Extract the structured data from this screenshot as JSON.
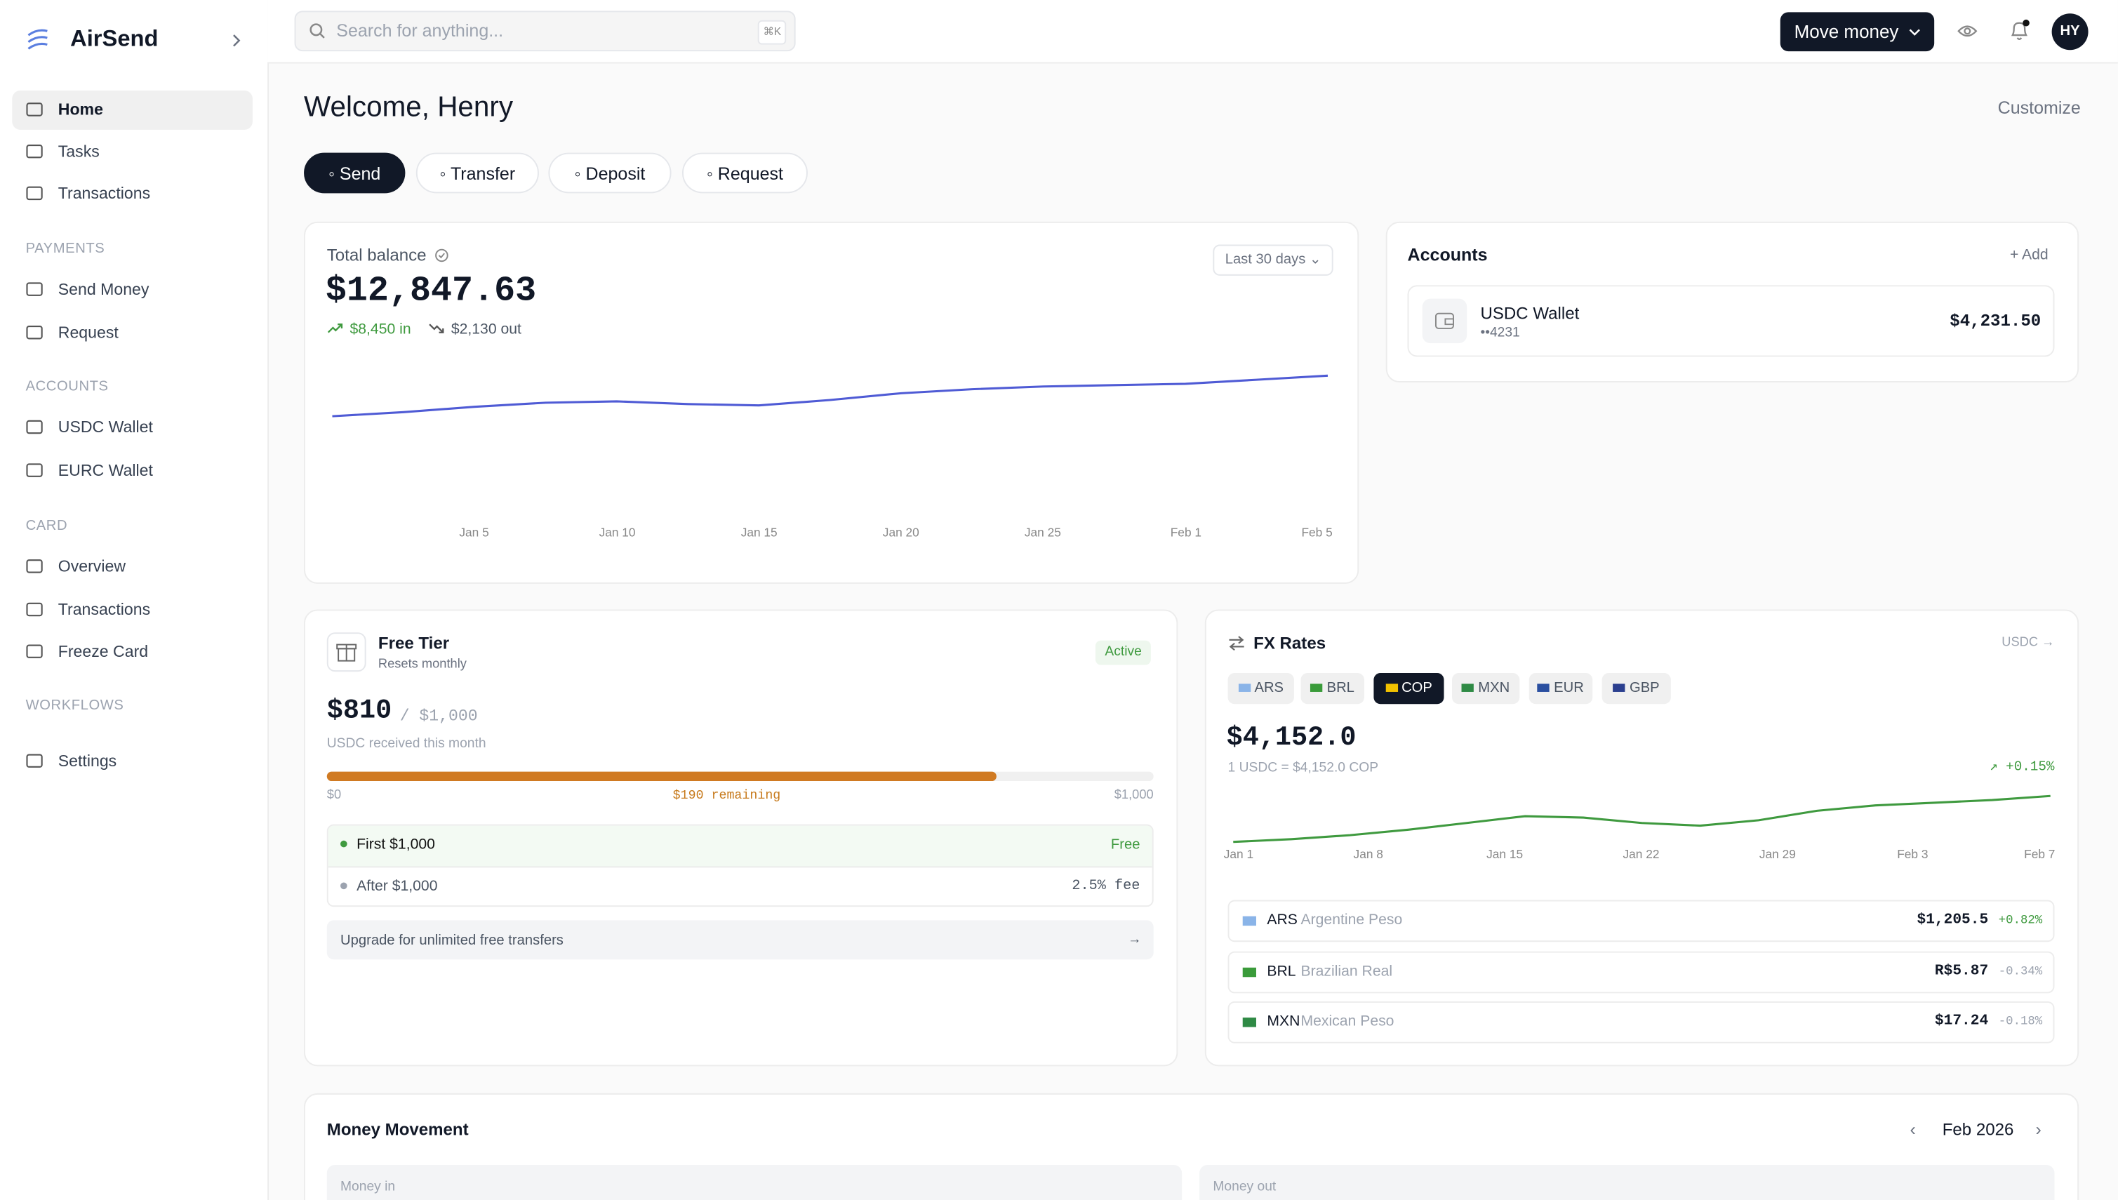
{
  "sidebar": {
    "brand": "AirSend",
    "main": [
      "Home",
      "Tasks",
      "Transactions"
    ],
    "sections": [
      {
        "title": "PAYMENTS",
        "items": [
          "Send Money",
          "Request"
        ]
      },
      {
        "title": "ACCOUNTS",
        "items": [
          "USDC Wallet",
          "EURC Wallet"
        ]
      },
      {
        "title": "CARD",
        "items": [
          "Overview",
          "Transactions",
          "Freeze Card"
        ]
      },
      {
        "title": "WORKFLOWS",
        "items": []
      }
    ],
    "settings": "Settings"
  },
  "topbar": {
    "search_placeholder": "Search for anything...",
    "shortcut": "⌘K",
    "move_money": "Move money",
    "avatar": "HY"
  },
  "header": {
    "title": "Welcome, Henry",
    "customize": "Customize",
    "actions": [
      "Send",
      "Transfer",
      "Deposit",
      "Request"
    ]
  },
  "balance": {
    "label": "Total balance",
    "amount": "$12,847.63",
    "money_in": "$8,450 in",
    "money_out": "$2,130 out",
    "range": "Last 30 days",
    "chart_data": {
      "type": "line",
      "color": "#4f5bd5",
      "values": [
        11200,
        11365,
        11584,
        11749,
        11804,
        11694,
        11639,
        11859,
        12134,
        12298,
        12408,
        12463,
        12518,
        12683,
        12847.63
      ],
      "xtick_labels": [
        "Jan 5",
        "Jan 10",
        "Jan 15",
        "Jan 20",
        "Jan 25",
        "Feb 1",
        "Feb 5"
      ]
    }
  },
  "accounts": {
    "title": "Accounts",
    "add": "Add",
    "items": [
      {
        "name": "USDC Wallet",
        "mask": "••4231",
        "balance": "$4,231.50"
      }
    ]
  },
  "free_tier": {
    "title": "Free Tier",
    "subtitle": "Resets monthly",
    "status": "Active",
    "amount": "$810",
    "limit": "/ $1,000",
    "note": "USDC received this month",
    "progress": {
      "value": 810,
      "max": 1000
    },
    "scale_start": "$0",
    "remaining": "$190 remaining",
    "scale_end": "$1,000",
    "tiers": [
      {
        "label": "First $1,000",
        "fee": "Free"
      },
      {
        "label": "After $1,000",
        "fee": "2.5% fee"
      }
    ],
    "upgrade": "Upgrade for unlimited free transfers"
  },
  "fx": {
    "title": "FX Rates",
    "base": "USDC →",
    "tabs": [
      "ARS",
      "BRL",
      "COP",
      "MXN",
      "EUR",
      "GBP"
    ],
    "active_tab": 2,
    "rate": "$4,152.0",
    "rate_note": "1 USDC = $4,152.0 COP",
    "change": "+0.15%",
    "chart_data": {
      "type": "line",
      "color": "#3f9a3f",
      "values": [
        4100,
        4103.1,
        4107.6,
        4113.8,
        4121.4,
        4129.1,
        4127.5,
        4121.4,
        4118.4,
        4124.5,
        4135.2,
        4141.3,
        4144.3,
        4147.4,
        4152.0
      ],
      "xtick_labels": [
        "Jan 1",
        "Jan 8",
        "Jan 15",
        "Jan 22",
        "Jan 29",
        "Feb 3",
        "Feb 7"
      ]
    },
    "rows": [
      {
        "code": "ARS",
        "name": "Argentine Peso",
        "price": "$1,205.5",
        "change": "+0.82%"
      },
      {
        "code": "BRL",
        "name": "Brazilian Real",
        "price": "R$5.87",
        "change": "-0.34%"
      },
      {
        "code": "MXN",
        "name": "Mexican Peso",
        "price": "$17.24",
        "change": "-0.18%"
      }
    ]
  },
  "money_movement": {
    "title": "Money Movement",
    "period": "Feb 2026",
    "money_in": "Money in",
    "money_out": "Money out"
  }
}
